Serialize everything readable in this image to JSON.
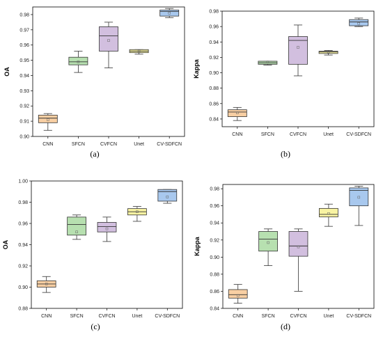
{
  "chart_data": [
    {
      "type": "box",
      "panel_label": "(a)",
      "ylabel": "OA",
      "ylim": [
        0.9,
        0.985
      ],
      "yticks": [
        "0.90",
        "0.91",
        "0.92",
        "0.93",
        "0.94",
        "0.95",
        "0.96",
        "0.97",
        "0.98"
      ],
      "categories": [
        "CNN",
        "SFCN",
        "CVFCN",
        "Unet",
        "CV-SDFCN"
      ],
      "colors": [
        "#f8cfa3",
        "#b7e0b0",
        "#d2bfdf",
        "#f8f3a2",
        "#a8c8ee"
      ],
      "boxes": [
        {
          "min": 0.904,
          "q1": 0.909,
          "median": 0.912,
          "q3": 0.914,
          "max": 0.915,
          "mean": 0.911
        },
        {
          "min": 0.942,
          "q1": 0.947,
          "median": 0.949,
          "q3": 0.952,
          "max": 0.956,
          "mean": 0.949
        },
        {
          "min": 0.945,
          "q1": 0.956,
          "median": 0.966,
          "q3": 0.972,
          "max": 0.975,
          "mean": 0.963
        },
        {
          "min": 0.954,
          "q1": 0.955,
          "median": 0.956,
          "q3": 0.957,
          "max": 0.957,
          "mean": 0.956
        },
        {
          "min": 0.978,
          "q1": 0.979,
          "median": 0.982,
          "q3": 0.983,
          "max": 0.984,
          "mean": 0.981
        }
      ]
    },
    {
      "type": "box",
      "panel_label": "(b)",
      "ylabel": "Kappa",
      "ylim": [
        0.83,
        0.98
      ],
      "yticks": [
        "0.84",
        "0.86",
        "0.88",
        "0.90",
        "0.92",
        "0.94",
        "0.96",
        "0.98"
      ],
      "categories": [
        "CNN",
        "SFCN",
        "CVFCN",
        "Unet",
        "CV-SDFCN"
      ],
      "colors": [
        "#f8cfa3",
        "#b7e0b0",
        "#d2bfdf",
        "#f8f3a2",
        "#a8c8ee"
      ],
      "boxes": [
        {
          "min": 0.838,
          "q1": 0.843,
          "median": 0.849,
          "q3": 0.852,
          "max": 0.855,
          "mean": 0.848
        },
        {
          "min": 0.91,
          "q1": 0.911,
          "median": 0.913,
          "q3": 0.915,
          "max": 0.915,
          "mean": 0.914
        },
        {
          "min": 0.896,
          "q1": 0.911,
          "median": 0.942,
          "q3": 0.947,
          "max": 0.962,
          "mean": 0.933
        },
        {
          "min": 0.923,
          "q1": 0.925,
          "median": 0.927,
          "q3": 0.928,
          "max": 0.929,
          "mean": 0.927
        },
        {
          "min": 0.96,
          "q1": 0.961,
          "median": 0.966,
          "q3": 0.969,
          "max": 0.971,
          "mean": 0.964
        }
      ]
    },
    {
      "type": "box",
      "panel_label": "(c)",
      "ylabel": "OA",
      "ylim": [
        0.88,
        1.0
      ],
      "yticks": [
        "0.88",
        "0.90",
        "0.92",
        "0.94",
        "0.96",
        "0.98",
        "1.00"
      ],
      "categories": [
        "CNN",
        "SFCN",
        "CVFCN",
        "Unet",
        "CV-SDFCN"
      ],
      "colors": [
        "#f8cfa3",
        "#b7e0b0",
        "#d2bfdf",
        "#f8f3a2",
        "#a8c8ee"
      ],
      "boxes": [
        {
          "min": 0.895,
          "q1": 0.9,
          "median": 0.903,
          "q3": 0.906,
          "max": 0.91,
          "mean": 0.903
        },
        {
          "min": 0.945,
          "q1": 0.949,
          "median": 0.959,
          "q3": 0.966,
          "max": 0.968,
          "mean": 0.952
        },
        {
          "min": 0.943,
          "q1": 0.952,
          "median": 0.957,
          "q3": 0.961,
          "max": 0.966,
          "mean": 0.955
        },
        {
          "min": 0.962,
          "q1": 0.968,
          "median": 0.971,
          "q3": 0.974,
          "max": 0.976,
          "mean": 0.971
        },
        {
          "min": 0.979,
          "q1": 0.981,
          "median": 0.99,
          "q3": 0.992,
          "max": 0.992,
          "mean": 0.985
        }
      ]
    },
    {
      "type": "box",
      "panel_label": "(d)",
      "ylabel": "Kappa",
      "ylim": [
        0.84,
        0.985
      ],
      "yticks": [
        "0.84",
        "0.86",
        "0.88",
        "0.90",
        "0.92",
        "0.94",
        "0.96",
        "0.98"
      ],
      "categories": [
        "CNN",
        "SFCN",
        "CVFCN",
        "Unet",
        "CV-SDFCN"
      ],
      "colors": [
        "#f8cfa3",
        "#b7e0b0",
        "#d2bfdf",
        "#f8f3a2",
        "#a8c8ee"
      ],
      "boxes": [
        {
          "min": 0.846,
          "q1": 0.852,
          "median": 0.856,
          "q3": 0.862,
          "max": 0.868,
          "mean": 0.855
        },
        {
          "min": 0.89,
          "q1": 0.907,
          "median": 0.921,
          "q3": 0.93,
          "max": 0.933,
          "mean": 0.917
        },
        {
          "min": 0.86,
          "q1": 0.901,
          "median": 0.913,
          "q3": 0.93,
          "max": 0.933,
          "mean": 0.912
        },
        {
          "min": 0.936,
          "q1": 0.947,
          "median": 0.95,
          "q3": 0.957,
          "max": 0.962,
          "mean": 0.951
        },
        {
          "min": 0.937,
          "q1": 0.96,
          "median": 0.978,
          "q3": 0.981,
          "max": 0.983,
          "mean": 0.97
        }
      ]
    }
  ]
}
